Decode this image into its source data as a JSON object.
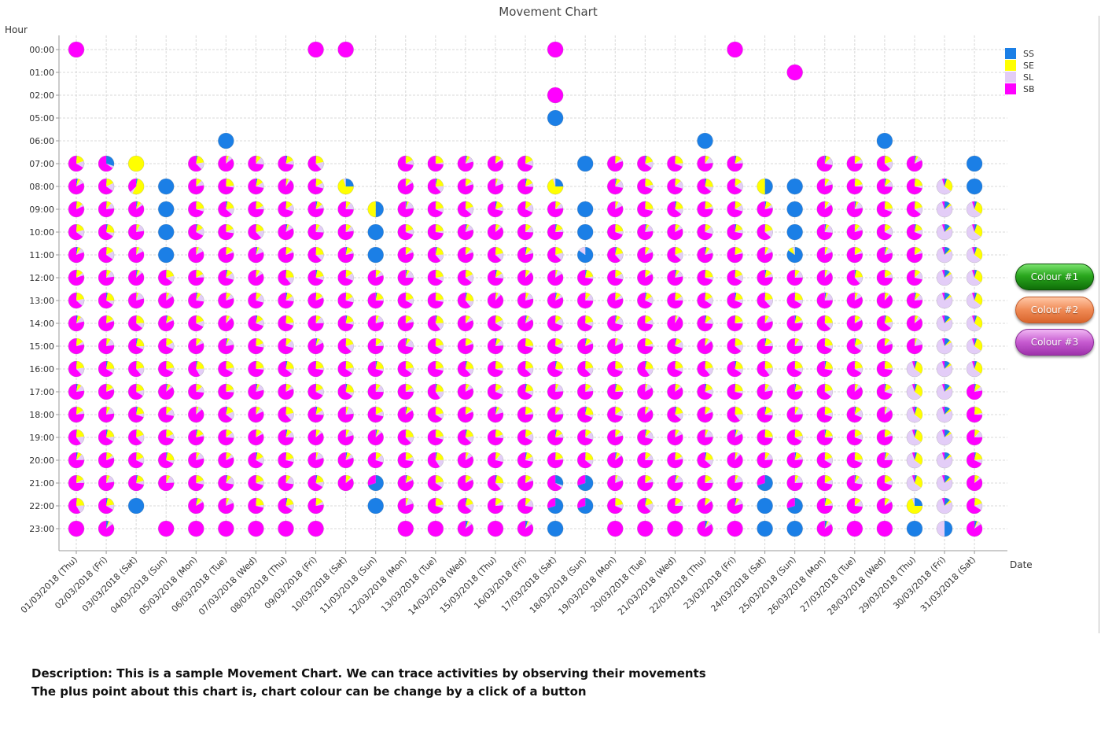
{
  "colors": {
    "SS": "#1b7fe6",
    "SE": "#ffff00",
    "SL": "#e3cdf7",
    "SB": "#ff00ff",
    "grid": "#d8d8d8",
    "axis": "#999999"
  },
  "chart_data": {
    "type": "scatter",
    "title": "Movement Chart",
    "ylabel": "Hour",
    "xlabel": "Date",
    "legend": {
      "placement": "top-right",
      "entries": [
        "SS",
        "SE",
        "SL",
        "SB"
      ]
    },
    "grid": true,
    "hours": [
      "00:00",
      "01:00",
      "02:00",
      "05:00",
      "06:00",
      "07:00",
      "08:00",
      "09:00",
      "10:00",
      "11:00",
      "12:00",
      "13:00",
      "14:00",
      "15:00",
      "16:00",
      "17:00",
      "18:00",
      "19:00",
      "20:00",
      "21:00",
      "22:00",
      "23:00"
    ],
    "dates": [
      "01/03/2018 (Thu)",
      "02/03/2018 (Fri)",
      "03/03/2018 (Sat)",
      "04/03/2018 (Sun)",
      "05/03/2018 (Mon)",
      "06/03/2018 (Tue)",
      "07/03/2018 (Wed)",
      "08/03/2018 (Thu)",
      "09/03/2018 (Fri)",
      "10/03/2018 (Sat)",
      "11/03/2018 (Sun)",
      "12/03/2018 (Mon)",
      "13/03/2018 (Tue)",
      "14/03/2018 (Wed)",
      "15/03/2018 (Thu)",
      "16/03/2018 (Fri)",
      "17/03/2018 (Sat)",
      "18/03/2018 (Sun)",
      "19/03/2018 (Mon)",
      "20/03/2018 (Tue)",
      "21/03/2018 (Wed)",
      "22/03/2018 (Thu)",
      "23/03/2018 (Fri)",
      "24/03/2018 (Sat)",
      "25/03/2018 (Sun)",
      "26/03/2018 (Mon)",
      "27/03/2018 (Tue)",
      "28/03/2018 (Wed)",
      "29/03/2018 (Thu)",
      "30/03/2018 (Fri)",
      "31/03/2018 (Sat)"
    ],
    "category_order": [
      "SS",
      "SE",
      "SL",
      "SB"
    ],
    "default_slices": {
      "SS": 0.03,
      "SE": 0.12,
      "SL": 0.1,
      "SB": 0.75
    },
    "profiles": {
      "B": {
        "SS": 1,
        "SE": 0,
        "SL": 0,
        "SB": 0
      },
      "M": {
        "SS": 0,
        "SE": 0,
        "SL": 0,
        "SB": 1
      },
      "Y": {
        "SS": 0,
        "SE": 1,
        "SL": 0,
        "SB": 0
      },
      "L": {
        "SS": 0.12,
        "SE": 0.05,
        "SL": 0.78,
        "SB": 0.05
      },
      "LY": {
        "SS": 0.05,
        "SE": 0.3,
        "SL": 0.6,
        "SB": 0.05
      },
      "YM": {
        "SS": 0.03,
        "SE": 0.55,
        "SL": 0.05,
        "SB": 0.37
      },
      "YB": {
        "SS": 0.25,
        "SE": 0.7,
        "SL": 0.05,
        "SB": 0
      },
      "BY": {
        "SS": 0.5,
        "SE": 0.5,
        "SL": 0,
        "SB": 0
      },
      "BL": {
        "SS": 0.85,
        "SE": 0,
        "SL": 0.15,
        "SB": 0
      },
      "BM": {
        "SS": 0.7,
        "SE": 0,
        "SL": 0,
        "SB": 0.3
      },
      "MB": {
        "SS": 0.3,
        "SE": 0,
        "SL": 0.05,
        "SB": 0.65
      },
      "MS": {
        "SS": 0.05,
        "SE": 0.03,
        "SL": 0.07,
        "SB": 0.85
      },
      "LB": {
        "SS": 0.5,
        "SE": 0,
        "SL": 0.5,
        "SB": 0
      },
      "BSY": {
        "SS": 0.85,
        "SE": 0.1,
        "SL": 0.05,
        "SB": 0
      }
    },
    "points": {
      "00:00": {
        "01/03/2018 (Thu)": "M",
        "09/03/2018 (Fri)": "M",
        "10/03/2018 (Sat)": "M",
        "17/03/2018 (Sat)": "M",
        "23/03/2018 (Fri)": "M"
      },
      "01:00": {
        "25/03/2018 (Sun)": "M"
      },
      "02:00": {
        "17/03/2018 (Sat)": "M"
      },
      "05:00": {
        "17/03/2018 (Sat)": "B"
      },
      "06:00": {
        "06/03/2018 (Tue)": "B",
        "22/03/2018 (Thu)": "B",
        "28/03/2018 (Wed)": "B"
      },
      "07:00": {
        "01/03/2018 (Thu)": "*",
        "02/03/2018 (Fri)": "MB",
        "03/03/2018 (Sat)": "Y",
        "05/03/2018 (Mon)": "*",
        "06/03/2018 (Tue)": "*",
        "07/03/2018 (Wed)": "*",
        "08/03/2018 (Thu)": "*",
        "09/03/2018 (Fri)": "*",
        "12/03/2018 (Mon)": "*",
        "13/03/2018 (Tue)": "*",
        "14/03/2018 (Wed)": "*",
        "15/03/2018 (Thu)": "*",
        "16/03/2018 (Fri)": "*",
        "18/03/2018 (Sun)": "B",
        "19/03/2018 (Mon)": "*",
        "20/03/2018 (Tue)": "*",
        "21/03/2018 (Wed)": "*",
        "22/03/2018 (Thu)": "*",
        "23/03/2018 (Fri)": "*",
        "26/03/2018 (Mon)": "*",
        "27/03/2018 (Tue)": "*",
        "28/03/2018 (Wed)": "*",
        "29/03/2018 (Thu)": "*",
        "31/03/2018 (Sat)": "B"
      },
      "08:00": {
        "01/03/2018 (Thu)": "*",
        "02/03/2018 (Fri)": "*",
        "03/03/2018 (Sat)": "YM",
        "04/03/2018 (Sun)": "B",
        "05/03/2018 (Mon)": "*",
        "06/03/2018 (Tue)": "*",
        "07/03/2018 (Wed)": "*",
        "08/03/2018 (Thu)": "*",
        "09/03/2018 (Fri)": "*",
        "10/03/2018 (Sat)": "YB",
        "12/03/2018 (Mon)": "*",
        "13/03/2018 (Tue)": "*",
        "14/03/2018 (Wed)": "*",
        "15/03/2018 (Thu)": "*",
        "16/03/2018 (Fri)": "*",
        "17/03/2018 (Sat)": "YB",
        "19/03/2018 (Mon)": "*",
        "20/03/2018 (Tue)": "*",
        "21/03/2018 (Wed)": "*",
        "22/03/2018 (Thu)": "*",
        "23/03/2018 (Fri)": "*",
        "24/03/2018 (Sat)": "BY",
        "25/03/2018 (Sun)": "B",
        "26/03/2018 (Mon)": "*",
        "27/03/2018 (Tue)": "*",
        "28/03/2018 (Wed)": "*",
        "29/03/2018 (Thu)": "*",
        "30/03/2018 (Fri)": "LY",
        "31/03/2018 (Sat)": "B"
      },
      "09:00": {
        "*": "*",
        "04/03/2018 (Sun)": "B",
        "11/03/2018 (Sun)": "BY",
        "18/03/2018 (Sun)": "B",
        "25/03/2018 (Sun)": "B",
        "30/03/2018 (Fri)": "L",
        "31/03/2018 (Sat)": "LY"
      },
      "10:00": {
        "*": "*",
        "04/03/2018 (Sun)": "B",
        "11/03/2018 (Sun)": "B",
        "18/03/2018 (Sun)": "B",
        "25/03/2018 (Sun)": "B",
        "30/03/2018 (Fri)": "L",
        "31/03/2018 (Sat)": "LY"
      },
      "11:00": {
        "*": "*",
        "04/03/2018 (Sun)": "B",
        "11/03/2018 (Sun)": "B",
        "18/03/2018 (Sun)": "BL",
        "25/03/2018 (Sun)": "BSY",
        "30/03/2018 (Fri)": "L",
        "31/03/2018 (Sat)": "LY"
      },
      "12:00": {
        "*": "*",
        "30/03/2018 (Fri)": "L",
        "31/03/2018 (Sat)": "LY"
      },
      "13:00": {
        "*": "*",
        "30/03/2018 (Fri)": "L",
        "31/03/2018 (Sat)": "LY"
      },
      "14:00": {
        "*": "*",
        "30/03/2018 (Fri)": "L",
        "31/03/2018 (Sat)": "LY"
      },
      "15:00": {
        "*": "*",
        "30/03/2018 (Fri)": "L",
        "31/03/2018 (Sat)": "LY"
      },
      "16:00": {
        "*": "*",
        "29/03/2018 (Thu)": "LY",
        "30/03/2018 (Fri)": "L",
        "31/03/2018 (Sat)": "LY"
      },
      "17:00": {
        "*": "*",
        "29/03/2018 (Thu)": "LY",
        "30/03/2018 (Fri)": "L"
      },
      "18:00": {
        "*": "*",
        "29/03/2018 (Thu)": "LY",
        "30/03/2018 (Fri)": "L"
      },
      "19:00": {
        "*": "*",
        "29/03/2018 (Thu)": "LY",
        "30/03/2018 (Fri)": "L"
      },
      "20:00": {
        "*": "*",
        "29/03/2018 (Thu)": "LY",
        "30/03/2018 (Fri)": "L"
      },
      "21:00": {
        "*": "*",
        "11/03/2018 (Sun)": "BM",
        "17/03/2018 (Sat)": "MB",
        "18/03/2018 (Sun)": "BM",
        "24/03/2018 (Sat)": "BM",
        "29/03/2018 (Thu)": "LY",
        "30/03/2018 (Fri)": "L"
      },
      "22:00": {
        "01/03/2018 (Thu)": "*",
        "02/03/2018 (Fri)": "*",
        "03/03/2018 (Sat)": "B",
        "05/03/2018 (Mon)": "*",
        "06/03/2018 (Tue)": "*",
        "07/03/2018 (Wed)": "*",
        "08/03/2018 (Thu)": "*",
        "09/03/2018 (Fri)": "*",
        "11/03/2018 (Sun)": "B",
        "12/03/2018 (Mon)": "*",
        "13/03/2018 (Tue)": "*",
        "14/03/2018 (Wed)": "*",
        "15/03/2018 (Thu)": "*",
        "16/03/2018 (Fri)": "*",
        "17/03/2018 (Sat)": "BM",
        "18/03/2018 (Sun)": "BM",
        "19/03/2018 (Mon)": "*",
        "20/03/2018 (Tue)": "*",
        "21/03/2018 (Wed)": "*",
        "22/03/2018 (Thu)": "*",
        "23/03/2018 (Fri)": "*",
        "24/03/2018 (Sat)": "B",
        "25/03/2018 (Sun)": "BM",
        "26/03/2018 (Mon)": "*",
        "27/03/2018 (Tue)": "*",
        "28/03/2018 (Wed)": "*",
        "29/03/2018 (Thu)": "YB",
        "30/03/2018 (Fri)": "L",
        "31/03/2018 (Sat)": "*"
      },
      "23:00": {
        "01/03/2018 (Thu)": "M",
        "02/03/2018 (Fri)": "MS",
        "04/03/2018 (Sun)": "M",
        "05/03/2018 (Mon)": "M",
        "06/03/2018 (Tue)": "M",
        "07/03/2018 (Wed)": "M",
        "08/03/2018 (Thu)": "M",
        "09/03/2018 (Fri)": "M",
        "12/03/2018 (Mon)": "M",
        "13/03/2018 (Tue)": "M",
        "14/03/2018 (Wed)": "MS",
        "15/03/2018 (Thu)": "M",
        "16/03/2018 (Fri)": "MS",
        "17/03/2018 (Sat)": "B",
        "19/03/2018 (Mon)": "M",
        "20/03/2018 (Tue)": "M",
        "21/03/2018 (Wed)": "M",
        "22/03/2018 (Thu)": "MS",
        "23/03/2018 (Fri)": "M",
        "24/03/2018 (Sat)": "B",
        "25/03/2018 (Sun)": "B",
        "26/03/2018 (Mon)": "MS",
        "27/03/2018 (Tue)": "M",
        "28/03/2018 (Wed)": "M",
        "29/03/2018 (Thu)": "B",
        "30/03/2018 (Fri)": "LB",
        "31/03/2018 (Sat)": "MS"
      }
    }
  },
  "buttons": {
    "colour1": "Colour #1",
    "colour2": "Colour #2",
    "colour3": "Colour #3"
  },
  "description": {
    "line1": "Description: This is a sample Movement Chart. We can trace activities by observing their movements",
    "line2": "The plus point about this chart is, chart colour can be change by a click of a button"
  }
}
